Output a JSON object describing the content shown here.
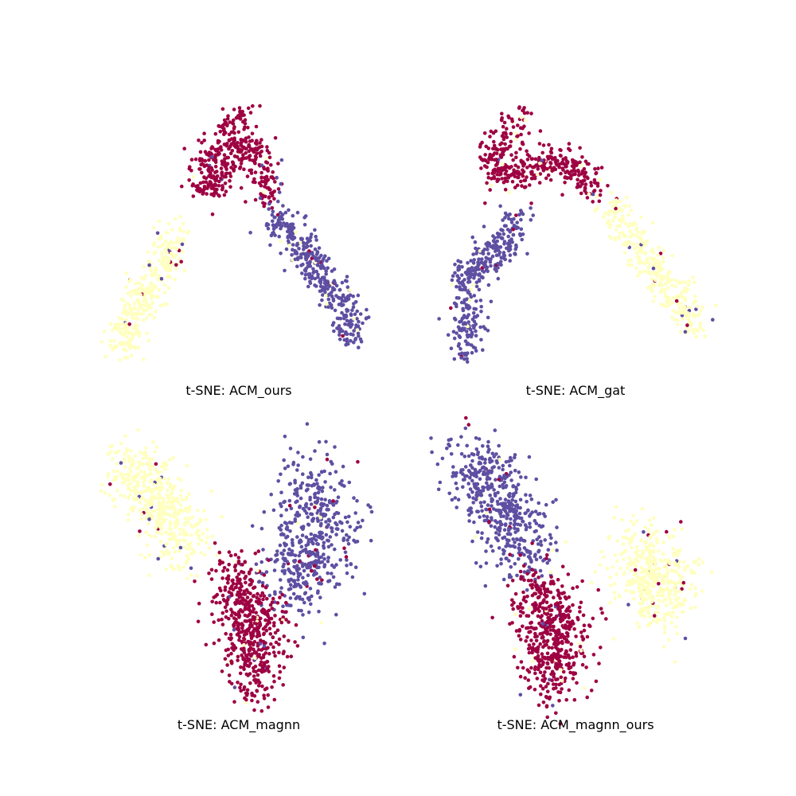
{
  "chart_data": [
    {
      "type": "scatter",
      "title": "t-SNE: ACM_ours",
      "clusters": [
        {
          "color": "#9e0142",
          "n": 420,
          "spine": [
            [
              305,
              138
            ],
            [
              270,
              188
            ],
            [
              248,
              212
            ],
            [
              262,
              238
            ],
            [
              315,
              175
            ],
            [
              332,
              218
            ],
            [
              338,
              250
            ]
          ],
          "width": 19
        },
        {
          "color": "#ffffbf",
          "n": 330,
          "spine": [
            [
              215,
              295
            ],
            [
              205,
              335
            ],
            [
              182,
              368
            ],
            [
              158,
              412
            ],
            [
              158,
              440
            ]
          ],
          "width": 22
        },
        {
          "color": "#5e4fa2",
          "n": 380,
          "spine": [
            [
              345,
              272
            ],
            [
              372,
              300
            ],
            [
              395,
              335
            ],
            [
              420,
              370
            ],
            [
              440,
              405
            ],
            [
              440,
              425
            ]
          ],
          "width": 22
        }
      ]
    },
    {
      "type": "scatter",
      "title": "t-SNE: ACM_gat",
      "clusters": [
        {
          "color": "#9e0142",
          "n": 400,
          "spine": [
            [
              655,
              148
            ],
            [
              630,
              185
            ],
            [
              615,
              215
            ],
            [
              660,
              218
            ],
            [
              690,
              200
            ],
            [
              722,
              212
            ],
            [
              745,
              238
            ]
          ],
          "width": 20
        },
        {
          "color": "#5e4fa2",
          "n": 360,
          "spine": [
            [
              650,
              275
            ],
            [
              630,
              305
            ],
            [
              605,
              330
            ],
            [
              578,
              355
            ],
            [
              590,
              395
            ],
            [
              585,
              442
            ]
          ],
          "width": 21
        },
        {
          "color": "#ffffbf",
          "n": 330,
          "spine": [
            [
              762,
              252
            ],
            [
              790,
              290
            ],
            [
              815,
              330
            ],
            [
              845,
              370
            ],
            [
              875,
              415
            ]
          ],
          "width": 20
        }
      ]
    },
    {
      "type": "scatter",
      "title": "t-SNE: ACM_magnn",
      "clusters": [
        {
          "color": "#ffffbf",
          "n": 480,
          "spine": [
            [
              162,
              578
            ],
            [
              185,
              615
            ],
            [
              210,
              650
            ],
            [
              238,
              690
            ]
          ],
          "width": 36
        },
        {
          "color": "#5e4fa2",
          "n": 500,
          "spine": [
            [
              400,
              600
            ],
            [
              400,
              650
            ],
            [
              390,
              700
            ],
            [
              360,
              740
            ]
          ],
          "width": 48
        },
        {
          "color": "#9e0142",
          "n": 520,
          "spine": [
            [
              290,
              720
            ],
            [
              310,
              770
            ],
            [
              320,
              820
            ],
            [
              320,
              860
            ]
          ],
          "width": 36
        }
      ]
    },
    {
      "type": "scatter",
      "title": "t-SNE: ACM_magnn_ours",
      "clusters": [
        {
          "color": "#5e4fa2",
          "n": 500,
          "spine": [
            [
              590,
              572
            ],
            [
              615,
              610
            ],
            [
              640,
              660
            ],
            [
              665,
              700
            ]
          ],
          "width": 40
        },
        {
          "color": "#9e0142",
          "n": 520,
          "spine": [
            [
              675,
              740
            ],
            [
              700,
              780
            ],
            [
              690,
              830
            ],
            [
              690,
              860
            ]
          ],
          "width": 40
        },
        {
          "color": "#ffffbf",
          "n": 430,
          "spine": [
            [
              800,
              690
            ],
            [
              825,
              725
            ],
            [
              830,
              760
            ]
          ],
          "width": 44
        }
      ]
    }
  ]
}
